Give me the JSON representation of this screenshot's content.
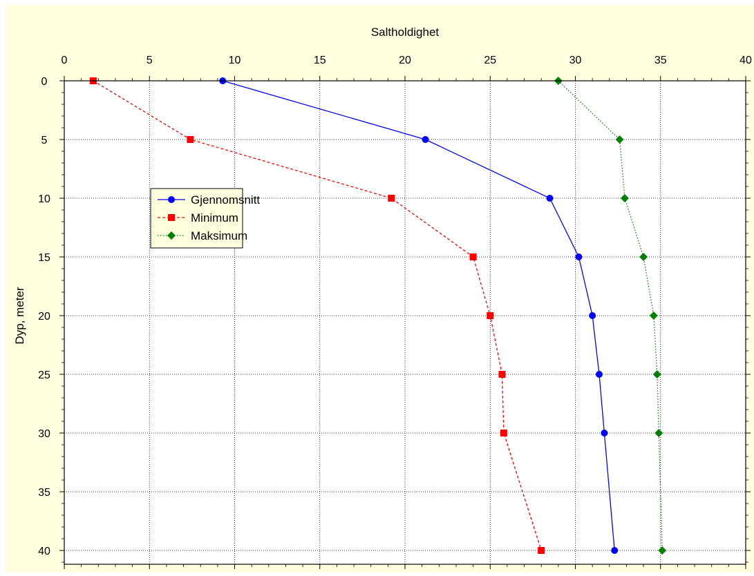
{
  "chart_data": {
    "type": "line",
    "title": "",
    "xlabel": "Saltholdighet",
    "ylabel": "Dyp, meter",
    "xlim": [
      0,
      40
    ],
    "ylim": [
      41,
      0
    ],
    "x_axis_position": "top",
    "y_inverted": true,
    "grid": true,
    "legend_position": "upper-left",
    "x_ticks": [
      "0",
      "5",
      "10",
      "15",
      "20",
      "25",
      "30",
      "35",
      "40"
    ],
    "y_ticks": [
      "0",
      "5",
      "10",
      "15",
      "20",
      "25",
      "30",
      "35",
      "40"
    ],
    "depths": [
      0,
      5,
      10,
      15,
      20,
      25,
      30,
      40
    ],
    "series": [
      {
        "name": "Gjennomsnitt",
        "color": "#0000ff",
        "marker": "circle",
        "line_style": "solid",
        "x": [
          9.3,
          21.2,
          28.5,
          30.2,
          31.0,
          31.4,
          31.7,
          32.3
        ]
      },
      {
        "name": "Minimum",
        "color": "#ff0000",
        "marker": "square",
        "line_style": "dashed",
        "x": [
          1.7,
          7.4,
          19.2,
          24.0,
          25.0,
          25.7,
          25.8,
          28.0
        ]
      },
      {
        "name": "Maksimum",
        "color": "#008000",
        "marker": "diamond",
        "line_style": "dotted",
        "x": [
          29.0,
          32.6,
          32.9,
          34.0,
          34.6,
          34.8,
          34.9,
          35.1
        ]
      }
    ],
    "background_color": "#ffffe0"
  }
}
